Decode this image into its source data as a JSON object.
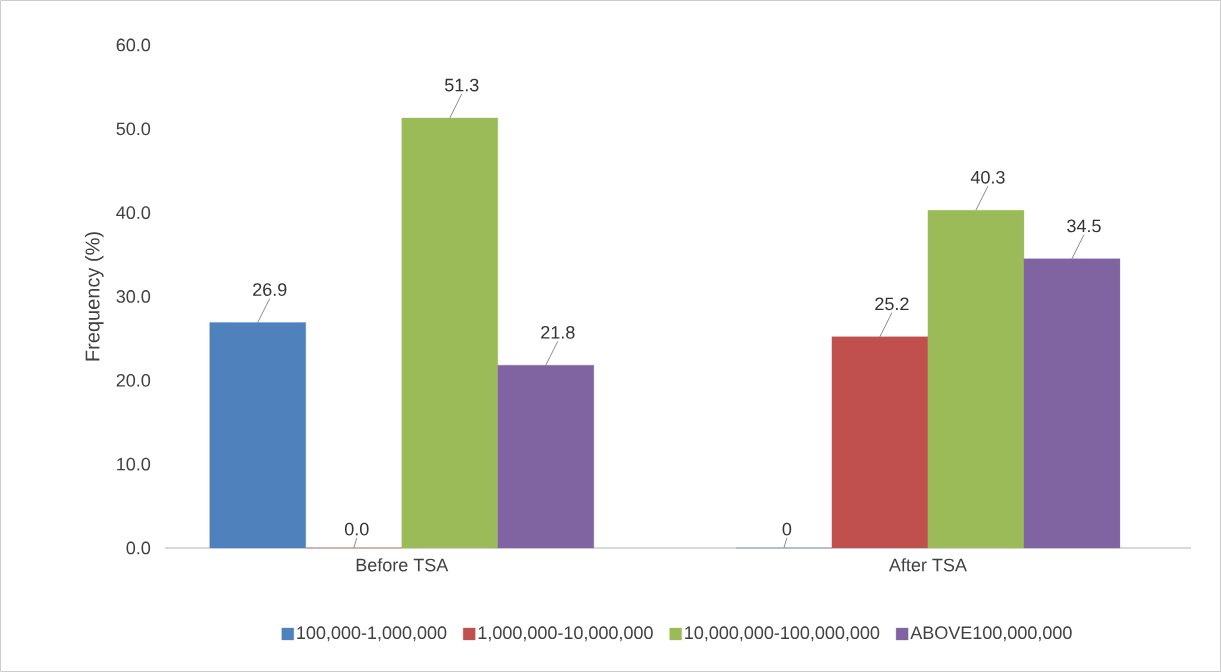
{
  "chart_data": {
    "type": "bar",
    "ylabel": "Frequency (%)",
    "categories": [
      "Before TSA",
      "After TSA"
    ],
    "series": [
      {
        "name": "100,000-1,000,000",
        "color": "#4f81bd",
        "values": [
          26.9,
          0
        ],
        "value_labels": [
          "26.9",
          "0"
        ]
      },
      {
        "name": "1,000,000-10,000,000",
        "color": "#c0504d",
        "values": [
          0.0,
          25.2
        ],
        "value_labels": [
          "0.0",
          "25.2"
        ]
      },
      {
        "name": "10,000,000-100,000,000",
        "color": "#9bbb59",
        "values": [
          51.3,
          40.3
        ],
        "value_labels": [
          "51.3",
          "40.3"
        ]
      },
      {
        "name": "ABOVE100,000,000",
        "color": "#8064a2",
        "values": [
          21.8,
          34.5
        ],
        "value_labels": [
          "21.8",
          "34.5"
        ]
      }
    ],
    "ylim": [
      0,
      60
    ],
    "yticks": [
      {
        "value": 0,
        "label": "0.0"
      },
      {
        "value": 10,
        "label": "10.0"
      },
      {
        "value": 20,
        "label": "20.0"
      },
      {
        "value": 30,
        "label": "30.0"
      },
      {
        "value": 40,
        "label": "40.0"
      },
      {
        "value": 50,
        "label": "50.0"
      },
      {
        "value": 60,
        "label": "60.0"
      }
    ],
    "legend": "bottom"
  }
}
